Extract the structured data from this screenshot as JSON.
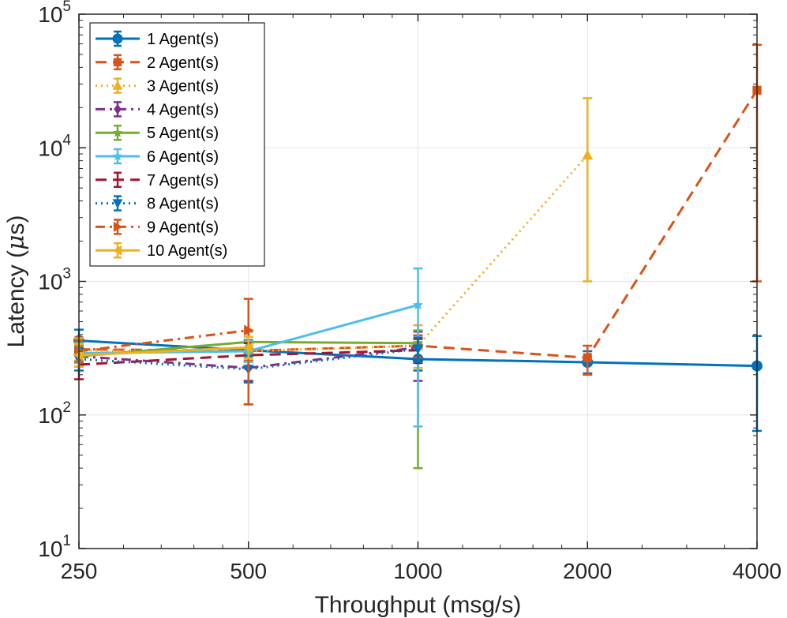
{
  "chart_data": {
    "type": "line",
    "title": "",
    "xlabel": "Throughput (msg/s)",
    "ylabel_main": "Latency (",
    "ylabel_mu": "μ",
    "ylabel_tail": "s)",
    "x_scale": "log",
    "y_scale": "log",
    "xlim": [
      250,
      4000
    ],
    "ylim": [
      10,
      100000
    ],
    "x_ticks": [
      {
        "value": 250,
        "label": "250"
      },
      {
        "value": 500,
        "label": "500"
      },
      {
        "value": 1000,
        "label": "1000"
      },
      {
        "value": 2000,
        "label": "2000"
      },
      {
        "value": 4000,
        "label": "4000"
      }
    ],
    "y_ticks": [
      {
        "value": 10,
        "base": "10",
        "exp": "1"
      },
      {
        "value": 100,
        "base": "10",
        "exp": "2"
      },
      {
        "value": 1000,
        "base": "10",
        "exp": "3"
      },
      {
        "value": 10000,
        "base": "10",
        "exp": "4"
      },
      {
        "value": 100000,
        "base": "10",
        "exp": "5"
      }
    ],
    "grid": true,
    "legend_position": "top-left",
    "series": [
      {
        "name": "1 Agent(s)",
        "color": "#0072BD",
        "dash": "solid",
        "marker": "circle",
        "x": [
          250,
          500,
          1000,
          2000,
          4000
        ],
        "y": [
          360,
          305,
          262,
          248,
          233
        ],
        "err_low": [
          295,
          250,
          215,
          205,
          76
        ],
        "err_high": [
          435,
          365,
          320,
          300,
          390
        ]
      },
      {
        "name": "2 Agent(s)",
        "color": "#D95319",
        "dash": "dashed",
        "marker": "square",
        "x": [
          250,
          500,
          1000,
          2000,
          4000
        ],
        "y": [
          310,
          302,
          330,
          268,
          27000
        ],
        "err_low": [
          255,
          255,
          270,
          200,
          1000
        ],
        "err_high": [
          380,
          360,
          395,
          330,
          59000
        ]
      },
      {
        "name": "3 Agent(s)",
        "color": "#EDB120",
        "dash": "dotted",
        "marker": "triangle-up",
        "x": [
          250,
          500,
          1000,
          2000
        ],
        "y": [
          305,
          300,
          330,
          8800
        ],
        "err_low": [
          255,
          250,
          225,
          1000
        ],
        "err_high": [
          375,
          360,
          470,
          23500
        ]
      },
      {
        "name": "4 Agent(s)",
        "color": "#7E2F8E",
        "dash": "dashdot",
        "marker": "diamond",
        "x": [
          250,
          500,
          1000
        ],
        "y": [
          275,
          225,
          320
        ],
        "err_low": [
          230,
          180,
          180
        ],
        "err_high": [
          330,
          280,
          420
        ]
      },
      {
        "name": "5 Agent(s)",
        "color": "#77AC30",
        "dash": "solid",
        "marker": "star",
        "x": [
          250,
          500,
          1000
        ],
        "y": [
          275,
          352,
          345
        ],
        "err_low": [
          230,
          290,
          40
        ],
        "err_high": [
          330,
          420,
          430
        ]
      },
      {
        "name": "6 Agent(s)",
        "color": "#4DBEEE",
        "dash": "solid",
        "marker": "star",
        "x": [
          250,
          500,
          1000
        ],
        "y": [
          290,
          300,
          665
        ],
        "err_low": [
          245,
          250,
          82
        ],
        "err_high": [
          345,
          355,
          1250
        ]
      },
      {
        "name": "7 Agent(s)",
        "color": "#A2142F",
        "dash": "dashed",
        "marker": "none",
        "x": [
          250,
          500,
          1000
        ],
        "y": [
          238,
          280,
          305
        ],
        "err_low": [
          185,
          120,
          245
        ],
        "err_high": [
          300,
          345,
          370
        ]
      },
      {
        "name": "8 Agent(s)",
        "color": "#0072BD",
        "dash": "dotted",
        "marker": "triangle-down",
        "x": [
          250,
          500,
          1000
        ],
        "y": [
          262,
          220,
          312
        ],
        "err_low": [
          215,
          175,
          250
        ],
        "err_high": [
          315,
          275,
          380
        ]
      },
      {
        "name": "9 Agent(s)",
        "color": "#D95319",
        "dash": "dashdot",
        "marker": "triangle-right",
        "x": [
          250,
          500
        ],
        "y": [
          300,
          430
        ],
        "err_low": [
          250,
          120
        ],
        "err_high": [
          360,
          740
        ]
      },
      {
        "name": "10 Agent(s)",
        "color": "#EDB120",
        "dash": "solid",
        "marker": "triangle-left",
        "x": [
          250,
          500
        ],
        "y": [
          280,
          320
        ],
        "err_low": [
          230,
          265
        ],
        "err_high": [
          340,
          385
        ]
      }
    ]
  }
}
